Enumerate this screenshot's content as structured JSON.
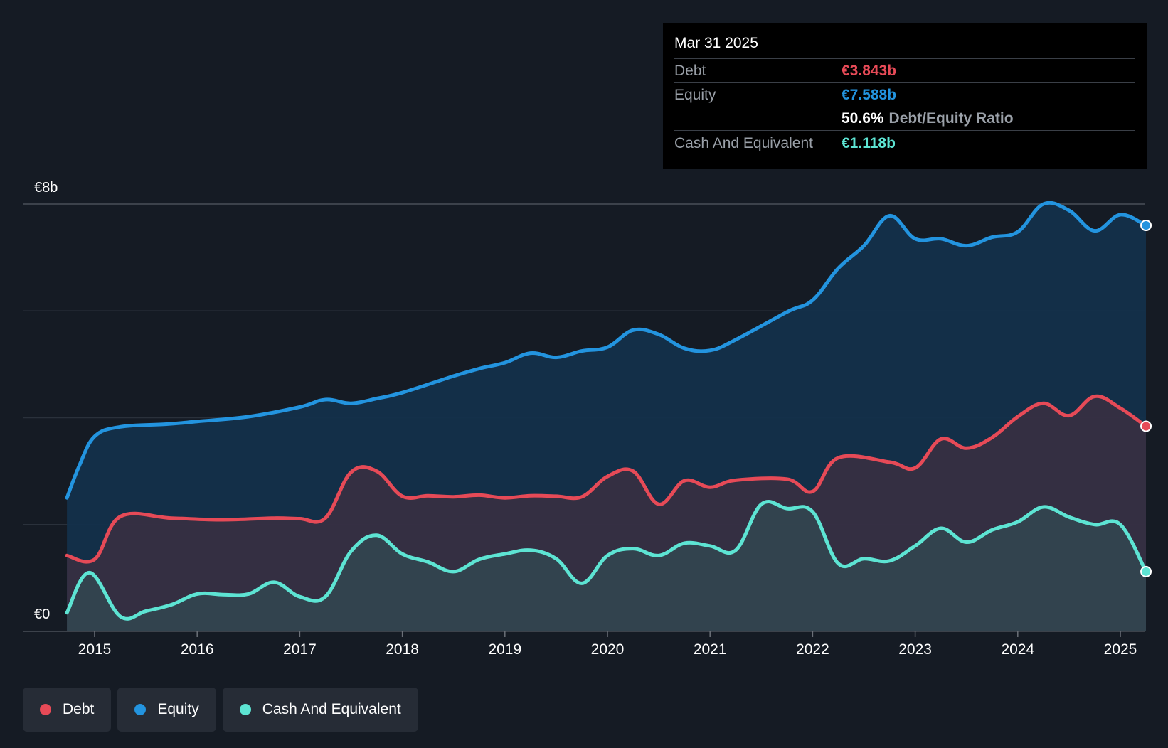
{
  "chart_data": {
    "type": "area",
    "y_top_label": "€8b",
    "y_bottom_label": "€0",
    "ylim": [
      0,
      8
    ],
    "x_ticks": [
      "2015",
      "2016",
      "2017",
      "2018",
      "2019",
      "2020",
      "2021",
      "2022",
      "2023",
      "2024",
      "2025"
    ],
    "series": [
      {
        "name": "Equity",
        "color": "#2394df",
        "x": [
          2014.73,
          2014.85,
          2015.0,
          2015.25,
          2015.7,
          2016.0,
          2016.5,
          2017.0,
          2017.25,
          2017.5,
          2017.75,
          2018.0,
          2018.5,
          2018.75,
          2019.0,
          2019.25,
          2019.5,
          2019.75,
          2020.0,
          2020.25,
          2020.5,
          2020.75,
          2021.0,
          2021.25,
          2021.75,
          2022.0,
          2022.25,
          2022.5,
          2022.75,
          2023.0,
          2023.25,
          2023.5,
          2023.75,
          2024.0,
          2024.25,
          2024.5,
          2024.75,
          2025.0,
          2025.25
        ],
        "values": [
          2.5,
          3.1,
          3.65,
          3.83,
          3.88,
          3.93,
          4.02,
          4.2,
          4.34,
          4.27,
          4.36,
          4.47,
          4.78,
          4.92,
          5.03,
          5.21,
          5.13,
          5.25,
          5.32,
          5.64,
          5.56,
          5.3,
          5.26,
          5.46,
          5.98,
          6.2,
          6.8,
          7.22,
          7.78,
          7.35,
          7.35,
          7.22,
          7.38,
          7.48,
          8.0,
          7.88,
          7.5,
          7.8,
          7.6
        ]
      },
      {
        "name": "Debt",
        "color": "#e64a57",
        "x": [
          2014.73,
          2015.0,
          2015.25,
          2015.75,
          2016.25,
          2016.75,
          2017.0,
          2017.25,
          2017.5,
          2017.75,
          2018.0,
          2018.25,
          2018.5,
          2018.75,
          2019.0,
          2019.25,
          2019.5,
          2019.75,
          2020.0,
          2020.25,
          2020.5,
          2020.75,
          2021.0,
          2021.25,
          2021.75,
          2022.0,
          2022.25,
          2022.75,
          2023.0,
          2023.25,
          2023.5,
          2023.75,
          2024.0,
          2024.25,
          2024.5,
          2024.75,
          2025.0,
          2025.25
        ],
        "values": [
          1.42,
          1.35,
          2.15,
          2.12,
          2.09,
          2.12,
          2.11,
          2.12,
          2.98,
          3.0,
          2.53,
          2.54,
          2.52,
          2.55,
          2.5,
          2.54,
          2.53,
          2.52,
          2.9,
          3.0,
          2.38,
          2.82,
          2.7,
          2.83,
          2.85,
          2.62,
          3.25,
          3.17,
          3.06,
          3.6,
          3.43,
          3.63,
          4.02,
          4.27,
          4.04,
          4.4,
          4.18,
          3.84
        ]
      },
      {
        "name": "Cash And Equivalent",
        "color": "#5de4d3",
        "x": [
          2014.73,
          2014.95,
          2015.25,
          2015.5,
          2015.75,
          2016.0,
          2016.25,
          2016.5,
          2016.75,
          2017.0,
          2017.25,
          2017.5,
          2017.75,
          2018.0,
          2018.25,
          2018.5,
          2018.75,
          2019.0,
          2019.25,
          2019.5,
          2019.75,
          2020.0,
          2020.25,
          2020.5,
          2020.75,
          2021.0,
          2021.25,
          2021.5,
          2021.75,
          2022.0,
          2022.25,
          2022.5,
          2022.75,
          2023.0,
          2023.25,
          2023.5,
          2023.75,
          2024.0,
          2024.25,
          2024.5,
          2024.75,
          2025.0,
          2025.25
        ],
        "values": [
          0.35,
          1.1,
          0.28,
          0.38,
          0.5,
          0.7,
          0.69,
          0.7,
          0.92,
          0.65,
          0.65,
          1.5,
          1.8,
          1.45,
          1.3,
          1.12,
          1.35,
          1.45,
          1.52,
          1.36,
          0.9,
          1.42,
          1.55,
          1.42,
          1.65,
          1.6,
          1.52,
          2.38,
          2.3,
          2.24,
          1.27,
          1.36,
          1.32,
          1.6,
          1.93,
          1.67,
          1.9,
          2.05,
          2.33,
          2.14,
          2.0,
          2.0,
          1.12
        ]
      }
    ],
    "tooltip": {
      "date": "Mar 31 2025",
      "debt_label": "Debt",
      "debt_value": "€3.843b",
      "equity_label": "Equity",
      "equity_value": "€7.588b",
      "ratio_value": "50.6%",
      "ratio_label": "Debt/Equity Ratio",
      "cash_label": "Cash And Equivalent",
      "cash_value": "€1.118b"
    },
    "legend": [
      {
        "name": "Debt",
        "color": "#e64a57"
      },
      {
        "name": "Equity",
        "color": "#2394df"
      },
      {
        "name": "Cash And Equivalent",
        "color": "#5de4d3"
      }
    ]
  }
}
